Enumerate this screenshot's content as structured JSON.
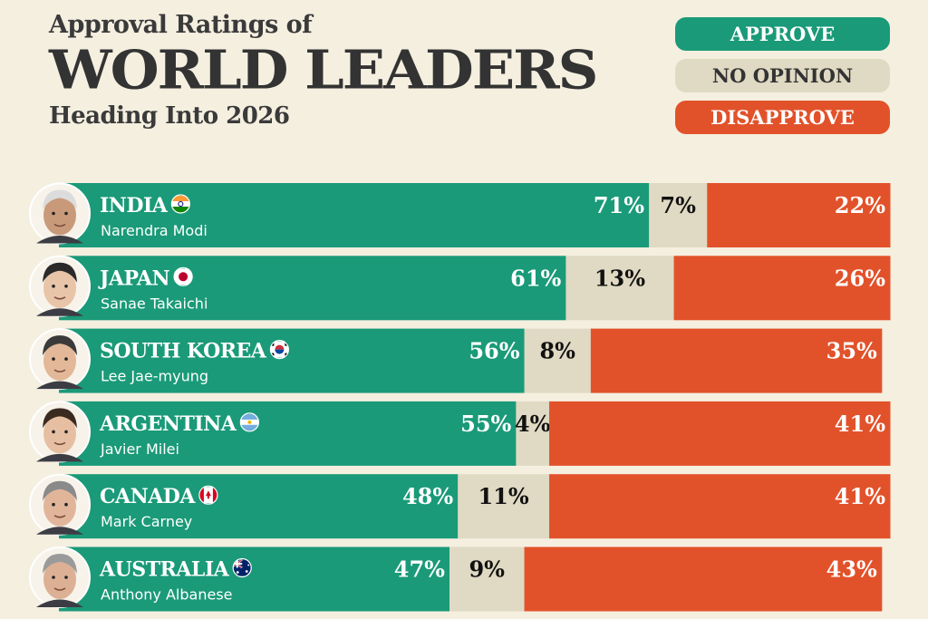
{
  "header": {
    "title_top": "Approval Ratings of",
    "title_main": "WORLD LEADERS",
    "title_sub": "Heading Into 2026"
  },
  "legend": {
    "approve": "APPROVE",
    "no_opinion": "NO OPINION",
    "disapprove": "DISAPPROVE"
  },
  "colors": {
    "approve": "#1a9a78",
    "no_opinion": "#e0d9c3",
    "disapprove": "#e2522a",
    "background": "#f5efe0"
  },
  "chart_data": {
    "type": "bar",
    "stacked": true,
    "orientation": "horizontal",
    "categories": [
      "INDIA",
      "JAPAN",
      "SOUTH KOREA",
      "ARGENTINA",
      "CANADA",
      "AUSTRALIA"
    ],
    "leaders": [
      "Narendra Modi",
      "Sanae Takaichi",
      "Lee Jae-myung",
      "Javier Milei",
      "Mark Carney",
      "Anthony Albanese"
    ],
    "flags": [
      "india-flag",
      "japan-flag",
      "south-korea-flag",
      "argentina-flag",
      "canada-flag",
      "australia-flag"
    ],
    "series": [
      {
        "name": "APPROVE",
        "values": [
          71,
          61,
          56,
          55,
          48,
          47
        ]
      },
      {
        "name": "NO OPINION",
        "values": [
          7,
          13,
          8,
          4,
          11,
          9
        ]
      },
      {
        "name": "DISAPPROVE",
        "values": [
          22,
          26,
          35,
          41,
          41,
          43
        ]
      }
    ],
    "value_labels": [
      [
        "71%",
        "7%",
        "22%"
      ],
      [
        "61%",
        "13%",
        "26%"
      ],
      [
        "56%",
        "8%",
        "35%"
      ],
      [
        "55%",
        "4%",
        "41%"
      ],
      [
        "48%",
        "11%",
        "41%"
      ],
      [
        "47%",
        "9%",
        "43%"
      ]
    ],
    "xlim": [
      0,
      100
    ]
  }
}
